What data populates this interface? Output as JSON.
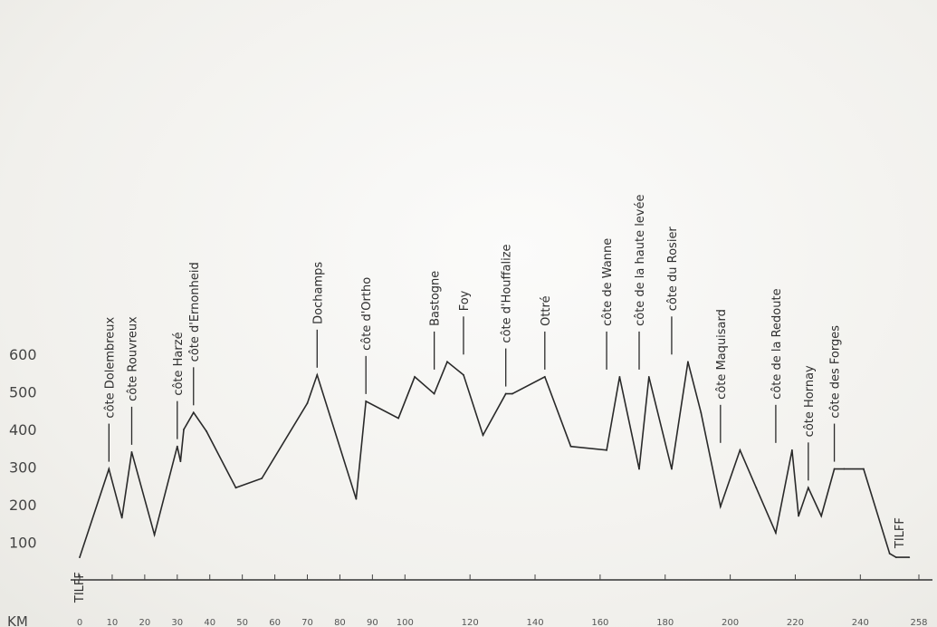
{
  "chart_data": {
    "type": "line",
    "title": "",
    "xlabel": "KM",
    "ylabel": "",
    "ylim": [
      0,
      700
    ],
    "xlim": [
      0,
      258
    ],
    "grid": false,
    "y_ticks": [
      {
        "value": 100,
        "label": "100"
      },
      {
        "value": 200,
        "label": "200"
      },
      {
        "value": 300,
        "label": "300"
      },
      {
        "value": 400,
        "label": "400"
      },
      {
        "value": 500,
        "label": "500"
      },
      {
        "value": 600,
        "label": "600"
      }
    ],
    "x_ticks": [
      {
        "value": 0,
        "label": "0"
      },
      {
        "value": 10,
        "label": "10"
      },
      {
        "value": 20,
        "label": "20"
      },
      {
        "value": 30,
        "label": "30"
      },
      {
        "value": 40,
        "label": "40"
      },
      {
        "value": 50,
        "label": "50"
      },
      {
        "value": 60,
        "label": "60"
      },
      {
        "value": 70,
        "label": "70"
      },
      {
        "value": 80,
        "label": "80"
      },
      {
        "value": 90,
        "label": "90"
      },
      {
        "value": 100,
        "label": "100"
      },
      {
        "value": 120,
        "label": "120"
      },
      {
        "value": 140,
        "label": "140"
      },
      {
        "value": 160,
        "label": "160"
      },
      {
        "value": 180,
        "label": "180"
      },
      {
        "value": 200,
        "label": "200"
      },
      {
        "value": 220,
        "label": "220"
      },
      {
        "value": 240,
        "label": "240"
      },
      {
        "value": 258,
        "label": "258"
      }
    ],
    "series": [
      {
        "x": [
          0,
          9,
          13,
          16,
          23,
          30,
          31,
          32,
          35,
          39,
          48,
          56,
          70,
          73,
          85,
          88,
          98,
          103,
          109,
          113,
          118,
          124,
          131,
          133,
          143,
          151,
          162,
          166,
          172,
          175,
          182,
          187,
          191,
          197,
          203,
          208,
          214,
          219,
          221,
          224,
          228,
          232,
          235,
          241,
          249,
          251,
          255
        ],
        "y": [
          60,
          295,
          165,
          340,
          120,
          355,
          315,
          400,
          445,
          395,
          245,
          270,
          470,
          545,
          215,
          475,
          430,
          540,
          495,
          580,
          545,
          385,
          495,
          495,
          540,
          355,
          345,
          540,
          295,
          540,
          295,
          580,
          445,
          195,
          345,
          245,
          125,
          345,
          170,
          245,
          170,
          295,
          295,
          295,
          70,
          60,
          60
        ]
      }
    ],
    "annotations": [
      {
        "text": "TILFF",
        "x": 0,
        "y": 60,
        "placement": "below"
      },
      {
        "text": "côte Dolembreux",
        "x": 9,
        "y": 295
      },
      {
        "text": "côte Rouvreux",
        "x": 16,
        "y": 340
      },
      {
        "text": "côte Harzé",
        "x": 30,
        "y": 355
      },
      {
        "text": "côte d'Ernonheid",
        "x": 35,
        "y": 445
      },
      {
        "text": "Dochamps",
        "x": 73,
        "y": 545
      },
      {
        "text": "côte d'Ortho",
        "x": 88,
        "y": 475
      },
      {
        "text": "Bastogne",
        "x": 109,
        "y": 540
      },
      {
        "text": "Foy",
        "x": 118,
        "y": 580
      },
      {
        "text": "côte d'Houffalize",
        "x": 131,
        "y": 495
      },
      {
        "text": "Ottré",
        "x": 143,
        "y": 540
      },
      {
        "text": "côte de Wanne",
        "x": 162,
        "y": 540
      },
      {
        "text": "côte de la haute levée",
        "x": 172,
        "y": 540
      },
      {
        "text": "côte du Rosier",
        "x": 182,
        "y": 580
      },
      {
        "text": "côte Maquisard",
        "x": 197,
        "y": 345
      },
      {
        "text": "côte de la Redoute",
        "x": 214,
        "y": 345
      },
      {
        "text": "côte Hornay",
        "x": 224,
        "y": 245
      },
      {
        "text": "côte des Forges",
        "x": 232,
        "y": 295
      },
      {
        "text": "TILFF",
        "x": 251,
        "y": 60,
        "placement": "above"
      }
    ]
  }
}
